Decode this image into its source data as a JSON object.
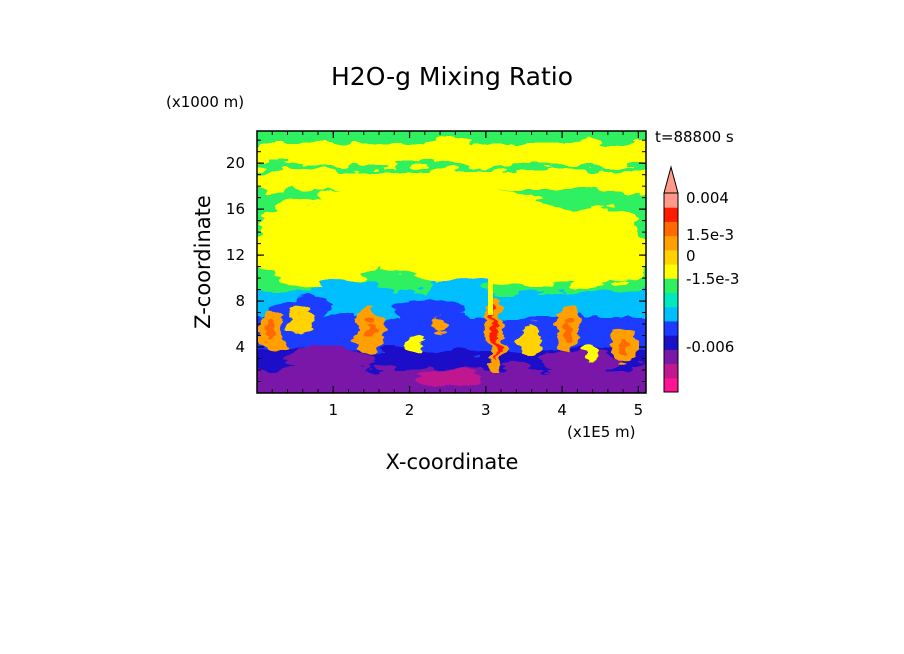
{
  "chart_data": {
    "type": "heatmap",
    "title": "H2O-g Mixing Ratio",
    "xlabel": "X-coordinate",
    "ylabel": "Z-coordinate",
    "x_unit": "(x1E5 m)",
    "y_unit": "(x1000 m)",
    "time_label": "t=88800 s",
    "xlim": [
      0,
      5.1
    ],
    "ylim": [
      0,
      22.8
    ],
    "x_ticks": [
      "1",
      "2",
      "3",
      "4",
      "5"
    ],
    "y_ticks": [
      "4",
      "8",
      "12",
      "16",
      "20"
    ],
    "colorbar": {
      "labels": [
        "0.004",
        "1.5e-3",
        "0",
        "-1.5e-3",
        "-0.006"
      ],
      "colors": [
        "#ff1493",
        "#c01890",
        "#7a18a8",
        "#1a10c8",
        "#1e3cff",
        "#00bfff",
        "#00e8c0",
        "#2ef060",
        "#ffff00",
        "#ffd200",
        "#ffa000",
        "#ff6a00",
        "#ff1c00",
        "#ff9a8a"
      ]
    },
    "regions": [
      {
        "level": "purple",
        "z_range": [
          0,
          2
        ]
      },
      {
        "level": "blue",
        "z_range": [
          1.5,
          6
        ]
      },
      {
        "level": "cyan",
        "z_range": [
          5,
          9
        ]
      },
      {
        "level": "orange-plumes",
        "x_centers": [
          0.2,
          0.6,
          1.5,
          2.2,
          3.2,
          3.7,
          4.2,
          4.9
        ],
        "z_range": [
          3,
          7
        ]
      },
      {
        "level": "yellow",
        "z_range": [
          8,
          15
        ]
      },
      {
        "level": "green",
        "z_range": [
          14,
          22.8
        ]
      }
    ]
  }
}
